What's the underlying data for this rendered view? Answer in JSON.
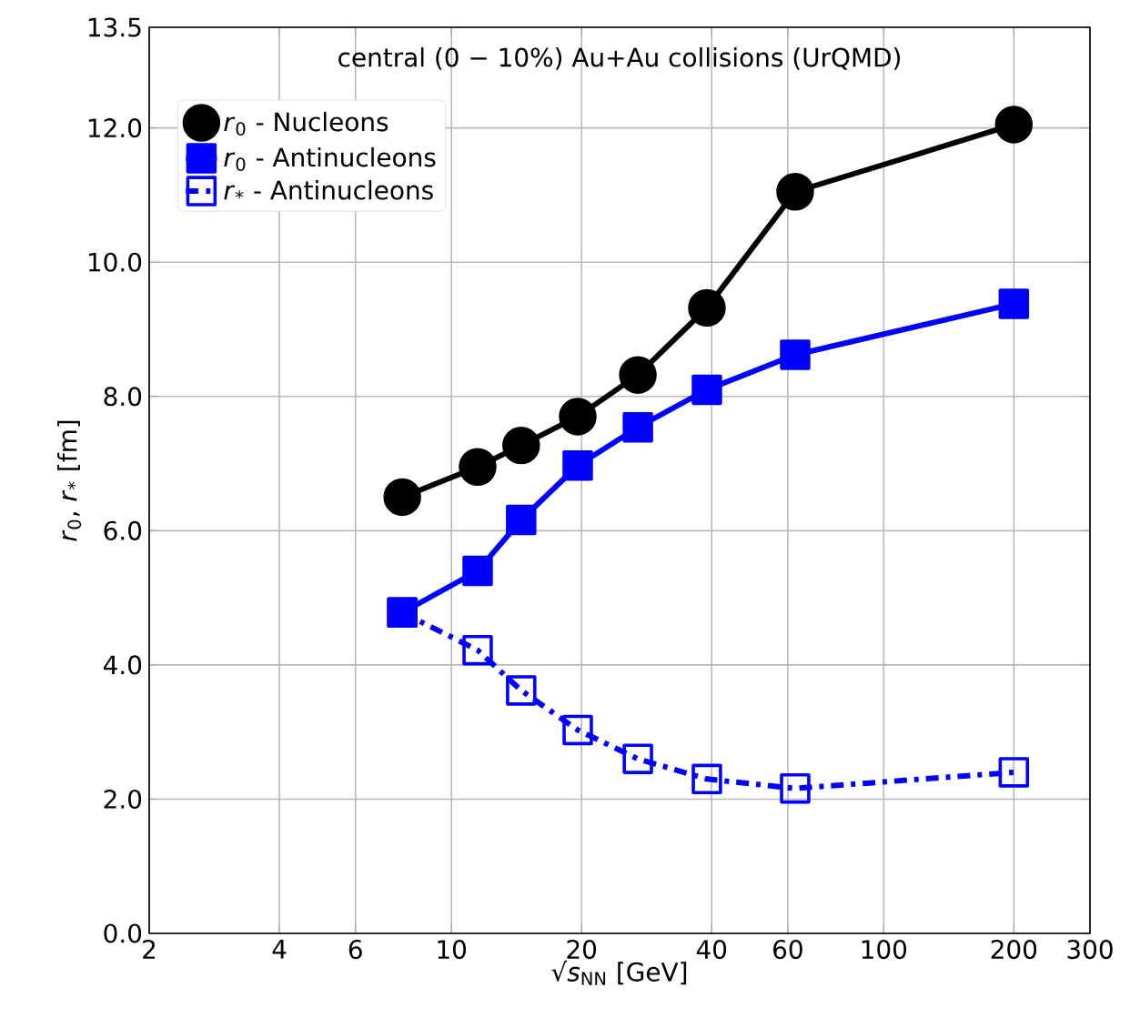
{
  "chart_data": {
    "type": "line",
    "xlabel": "√*s*$_{NN}$ [GeV]",
    "ylabel": "*r*$_{0}$, *r*$_{*}$ [fm]",
    "annotations": [
      "central (0 − 10%) Au+Au collisions (UrQMD)"
    ],
    "log": "x",
    "grid": true,
    "legend": "top left",
    "xlim": [
      2,
      300
    ],
    "xticks": [
      2,
      4,
      6,
      10,
      20,
      40,
      60,
      100,
      200,
      300
    ],
    "ylim": [
      0,
      13.5
    ],
    "yticks": [
      {
        "value": 0,
        "label": "0.0"
      },
      {
        "value": 2,
        "label": "2.0"
      },
      {
        "value": 4,
        "label": "4.0"
      },
      {
        "value": 6,
        "label": "6.0"
      },
      {
        "value": 8,
        "label": "8.0"
      },
      {
        "value": 10,
        "label": "10.0"
      },
      {
        "value": 12,
        "label": "12.0"
      },
      {
        "value": 13.5,
        "label": "13.5"
      }
    ],
    "x": [
      7.7,
      11.5,
      14.5,
      19.6,
      27,
      39,
      62.4,
      200
    ],
    "series": [
      {
        "name": "*r*$_{0}$ - Nucleons",
        "color": "#000000",
        "marker": "circle",
        "line_style": "solid",
        "values": [
          6.5,
          6.95,
          7.27,
          7.7,
          8.32,
          9.32,
          11.05,
          12.05
        ]
      },
      {
        "name": "*r*$_{0}$ - Antinucleons",
        "color": "#0000ff",
        "marker": "square",
        "line_style": "solid",
        "values": [
          4.78,
          5.4,
          6.16,
          6.97,
          7.54,
          8.1,
          8.62,
          9.38
        ]
      },
      {
        "name": "*r*$_{*}$ - Antinucleons",
        "color": "#0000ff",
        "marker": "square",
        "line_style": "dashdot",
        "values": [
          4.78,
          4.22,
          3.62,
          3.03,
          2.6,
          2.3,
          2.16,
          2.4
        ]
      }
    ]
  }
}
